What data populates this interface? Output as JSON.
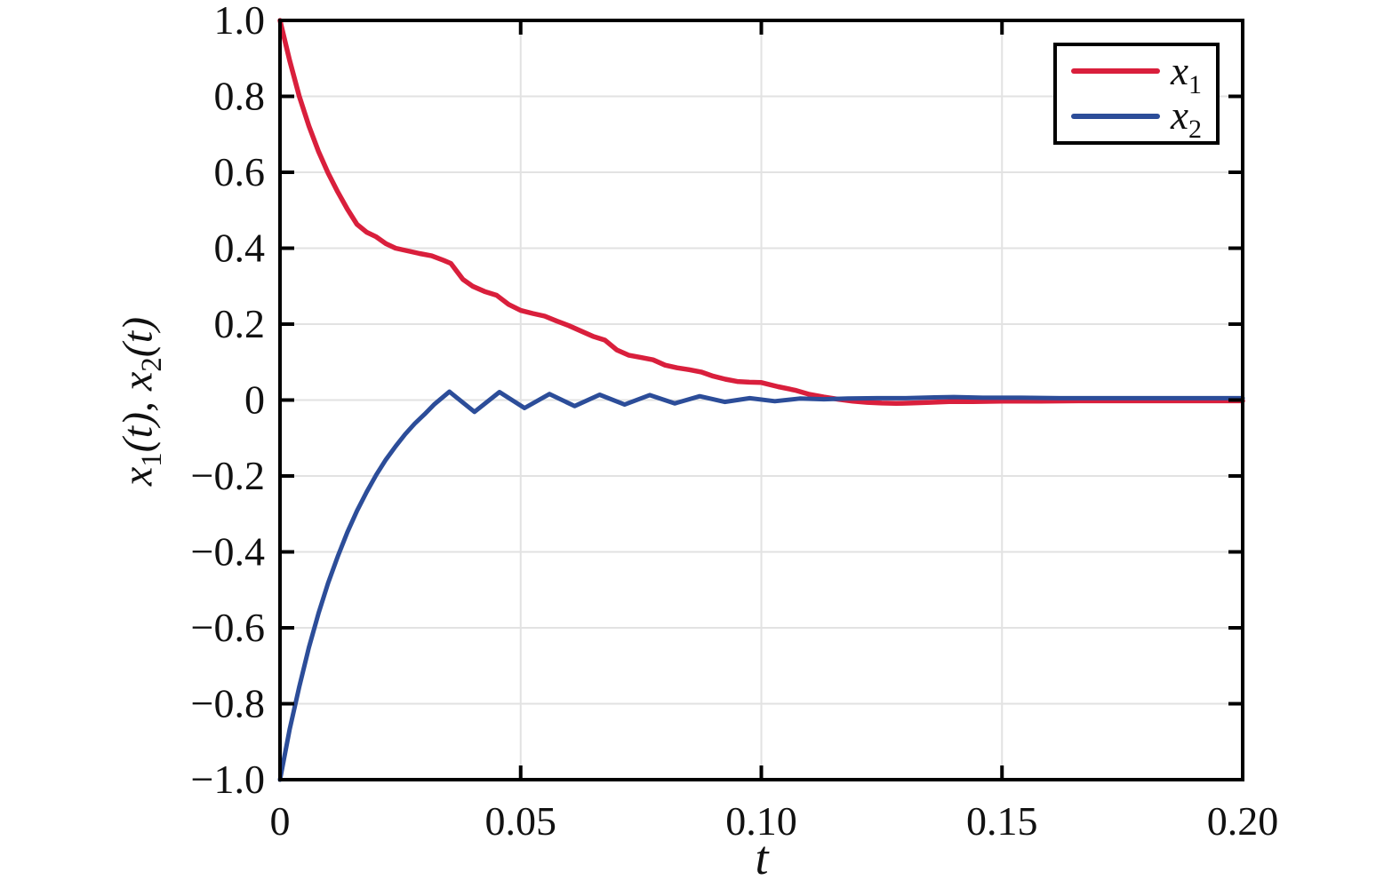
{
  "labels": {
    "y1m": "x",
    "y1s": "1",
    "y1p": "(t)",
    "sep": ", ",
    "y2m": "x",
    "y2s": "2",
    "y2p": "(t)"
  },
  "chart_data": {
    "type": "line",
    "title": "",
    "xlabel": "t",
    "ylabel": "x1(t), x2(t)",
    "xlim": [
      0,
      0.2
    ],
    "ylim": [
      -1,
      1
    ],
    "grid": true,
    "legend_position": "top-right",
    "axis_color": "#000000",
    "grid_color": "#e2e2e2",
    "x_ticks": [
      {
        "value": 0,
        "label": "0"
      },
      {
        "value": 0.05,
        "label": "0.05"
      },
      {
        "value": 0.1,
        "label": "0.10"
      },
      {
        "value": 0.15,
        "label": "0.15"
      },
      {
        "value": 0.2,
        "label": "0.20"
      }
    ],
    "y_ticks": [
      {
        "value": -1.0,
        "label": "−1.0"
      },
      {
        "value": -0.8,
        "label": "−0.8"
      },
      {
        "value": -0.6,
        "label": "−0.6"
      },
      {
        "value": -0.4,
        "label": "−0.4"
      },
      {
        "value": -0.2,
        "label": "−0.2"
      },
      {
        "value": 0,
        "label": "0"
      },
      {
        "value": 0.2,
        "label": "0.2"
      },
      {
        "value": 0.4,
        "label": "0.4"
      },
      {
        "value": 0.6,
        "label": "0.6"
      },
      {
        "value": 0.8,
        "label": "0.8"
      },
      {
        "value": 1.0,
        "label": "1.0"
      }
    ],
    "series": [
      {
        "name_main": "x",
        "name_sub": "1",
        "color": "#d91f3c",
        "width": 5.5,
        "points": [
          [
            0,
            1.0
          ],
          [
            0.002,
            0.895
          ],
          [
            0.004,
            0.8
          ],
          [
            0.006,
            0.722
          ],
          [
            0.008,
            0.655
          ],
          [
            0.01,
            0.598
          ],
          [
            0.012,
            0.548
          ],
          [
            0.014,
            0.503
          ],
          [
            0.016,
            0.463
          ],
          [
            0.018,
            0.442
          ],
          [
            0.02,
            0.43
          ],
          [
            0.022,
            0.412
          ],
          [
            0.024,
            0.4
          ],
          [
            0.0265,
            0.393
          ],
          [
            0.029,
            0.386
          ],
          [
            0.0315,
            0.38
          ],
          [
            0.034,
            0.368
          ],
          [
            0.0355,
            0.36
          ],
          [
            0.038,
            0.318
          ],
          [
            0.04,
            0.3
          ],
          [
            0.0425,
            0.286
          ],
          [
            0.045,
            0.276
          ],
          [
            0.0475,
            0.252
          ],
          [
            0.05,
            0.236
          ],
          [
            0.0525,
            0.228
          ],
          [
            0.055,
            0.221
          ],
          [
            0.0575,
            0.208
          ],
          [
            0.06,
            0.196
          ],
          [
            0.0625,
            0.182
          ],
          [
            0.065,
            0.168
          ],
          [
            0.0675,
            0.158
          ],
          [
            0.07,
            0.132
          ],
          [
            0.0725,
            0.118
          ],
          [
            0.075,
            0.112
          ],
          [
            0.0775,
            0.106
          ],
          [
            0.08,
            0.092
          ],
          [
            0.0825,
            0.085
          ],
          [
            0.085,
            0.08
          ],
          [
            0.0875,
            0.074
          ],
          [
            0.09,
            0.063
          ],
          [
            0.0925,
            0.055
          ],
          [
            0.095,
            0.049
          ],
          [
            0.0975,
            0.047
          ],
          [
            0.1,
            0.046
          ],
          [
            0.1035,
            0.035
          ],
          [
            0.107,
            0.026
          ],
          [
            0.11,
            0.015
          ],
          [
            0.113,
            0.008
          ],
          [
            0.116,
            0.002
          ],
          [
            0.119,
            -0.003
          ],
          [
            0.122,
            -0.006
          ],
          [
            0.125,
            -0.008
          ],
          [
            0.128,
            -0.009
          ],
          [
            0.131,
            -0.008
          ],
          [
            0.135,
            -0.006
          ],
          [
            0.139,
            -0.004
          ],
          [
            0.144,
            -0.004
          ],
          [
            0.15,
            -0.003
          ],
          [
            0.158,
            -0.003
          ],
          [
            0.166,
            -0.002
          ],
          [
            0.175,
            -0.002
          ],
          [
            0.185,
            -0.002
          ],
          [
            0.2,
            -0.002
          ]
        ]
      },
      {
        "name_main": "x",
        "name_sub": "2",
        "color": "#2c4d99",
        "width": 5,
        "points": [
          [
            0,
            -1.0
          ],
          [
            0.002,
            -0.868
          ],
          [
            0.004,
            -0.755
          ],
          [
            0.006,
            -0.652
          ],
          [
            0.008,
            -0.562
          ],
          [
            0.01,
            -0.482
          ],
          [
            0.012,
            -0.412
          ],
          [
            0.014,
            -0.348
          ],
          [
            0.016,
            -0.292
          ],
          [
            0.018,
            -0.242
          ],
          [
            0.02,
            -0.197
          ],
          [
            0.022,
            -0.157
          ],
          [
            0.024,
            -0.122
          ],
          [
            0.026,
            -0.09
          ],
          [
            0.028,
            -0.062
          ],
          [
            0.03,
            -0.038
          ],
          [
            0.032,
            -0.012
          ],
          [
            0.0352,
            0.022
          ],
          [
            0.0404,
            -0.031
          ],
          [
            0.0456,
            0.021
          ],
          [
            0.0508,
            -0.021
          ],
          [
            0.056,
            0.016
          ],
          [
            0.0612,
            -0.016
          ],
          [
            0.0664,
            0.014
          ],
          [
            0.0716,
            -0.012
          ],
          [
            0.0768,
            0.013
          ],
          [
            0.082,
            -0.009
          ],
          [
            0.0872,
            0.01
          ],
          [
            0.0924,
            -0.005
          ],
          [
            0.0976,
            0.005
          ],
          [
            0.1028,
            -0.003
          ],
          [
            0.108,
            0.004
          ],
          [
            0.113,
            0.002
          ],
          [
            0.118,
            0.004
          ],
          [
            0.124,
            0.005
          ],
          [
            0.13,
            0.005
          ],
          [
            0.136,
            0.007
          ],
          [
            0.14,
            0.008
          ],
          [
            0.146,
            0.006
          ],
          [
            0.154,
            0.006
          ],
          [
            0.162,
            0.005
          ],
          [
            0.172,
            0.005
          ],
          [
            0.184,
            0.005
          ],
          [
            0.2,
            0.005
          ]
        ]
      }
    ]
  }
}
